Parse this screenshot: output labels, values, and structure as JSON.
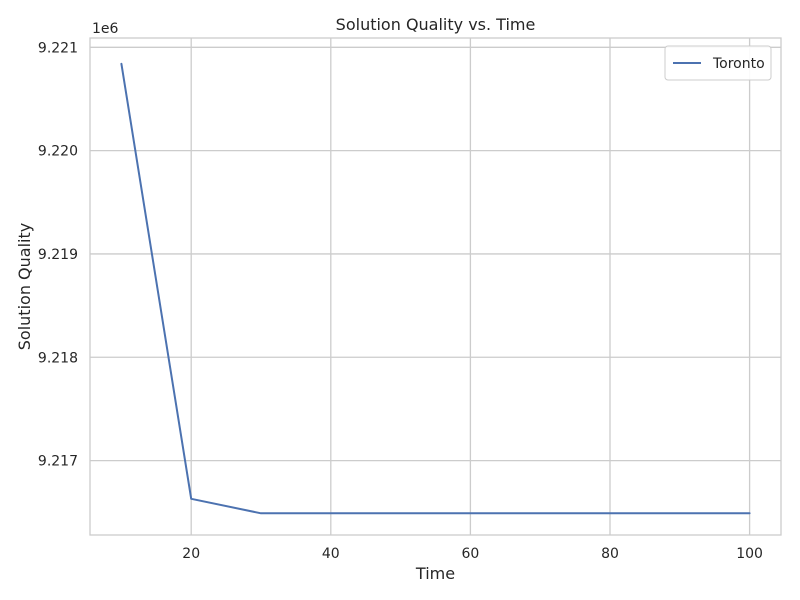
{
  "chart_data": {
    "type": "line",
    "title": "Solution Quality vs. Time",
    "xlabel": "Time",
    "ylabel": "Solution Quality",
    "y_offset_label": "1e6",
    "y_scale_factor": 1000000,
    "xlim": [
      5.5,
      104.5
    ],
    "ylim": [
      9216.28,
      9221.09
    ],
    "x_ticks": [
      20,
      40,
      60,
      80,
      100
    ],
    "x_tick_labels": [
      "20",
      "40",
      "60",
      "80",
      "100"
    ],
    "y_ticks": [
      9217,
      9218,
      9219,
      9220,
      9221
    ],
    "y_tick_labels": [
      "9.217",
      "9.218",
      "9.219",
      "9.220",
      "9.221"
    ],
    "grid": true,
    "legend_position": "top-right",
    "series": [
      {
        "name": "Toronto",
        "color": "#4c72b0",
        "x": [
          10,
          20,
          30,
          40,
          50,
          60,
          70,
          80,
          90,
          100
        ],
        "y": [
          9220.84,
          9216.63,
          9216.49,
          9216.49,
          9216.49,
          9216.49,
          9216.49,
          9216.49,
          9216.49,
          9216.49
        ]
      }
    ]
  },
  "colors": {
    "axes_frame": "#cccccc",
    "grid": "#cccccc",
    "text": "#262626"
  }
}
